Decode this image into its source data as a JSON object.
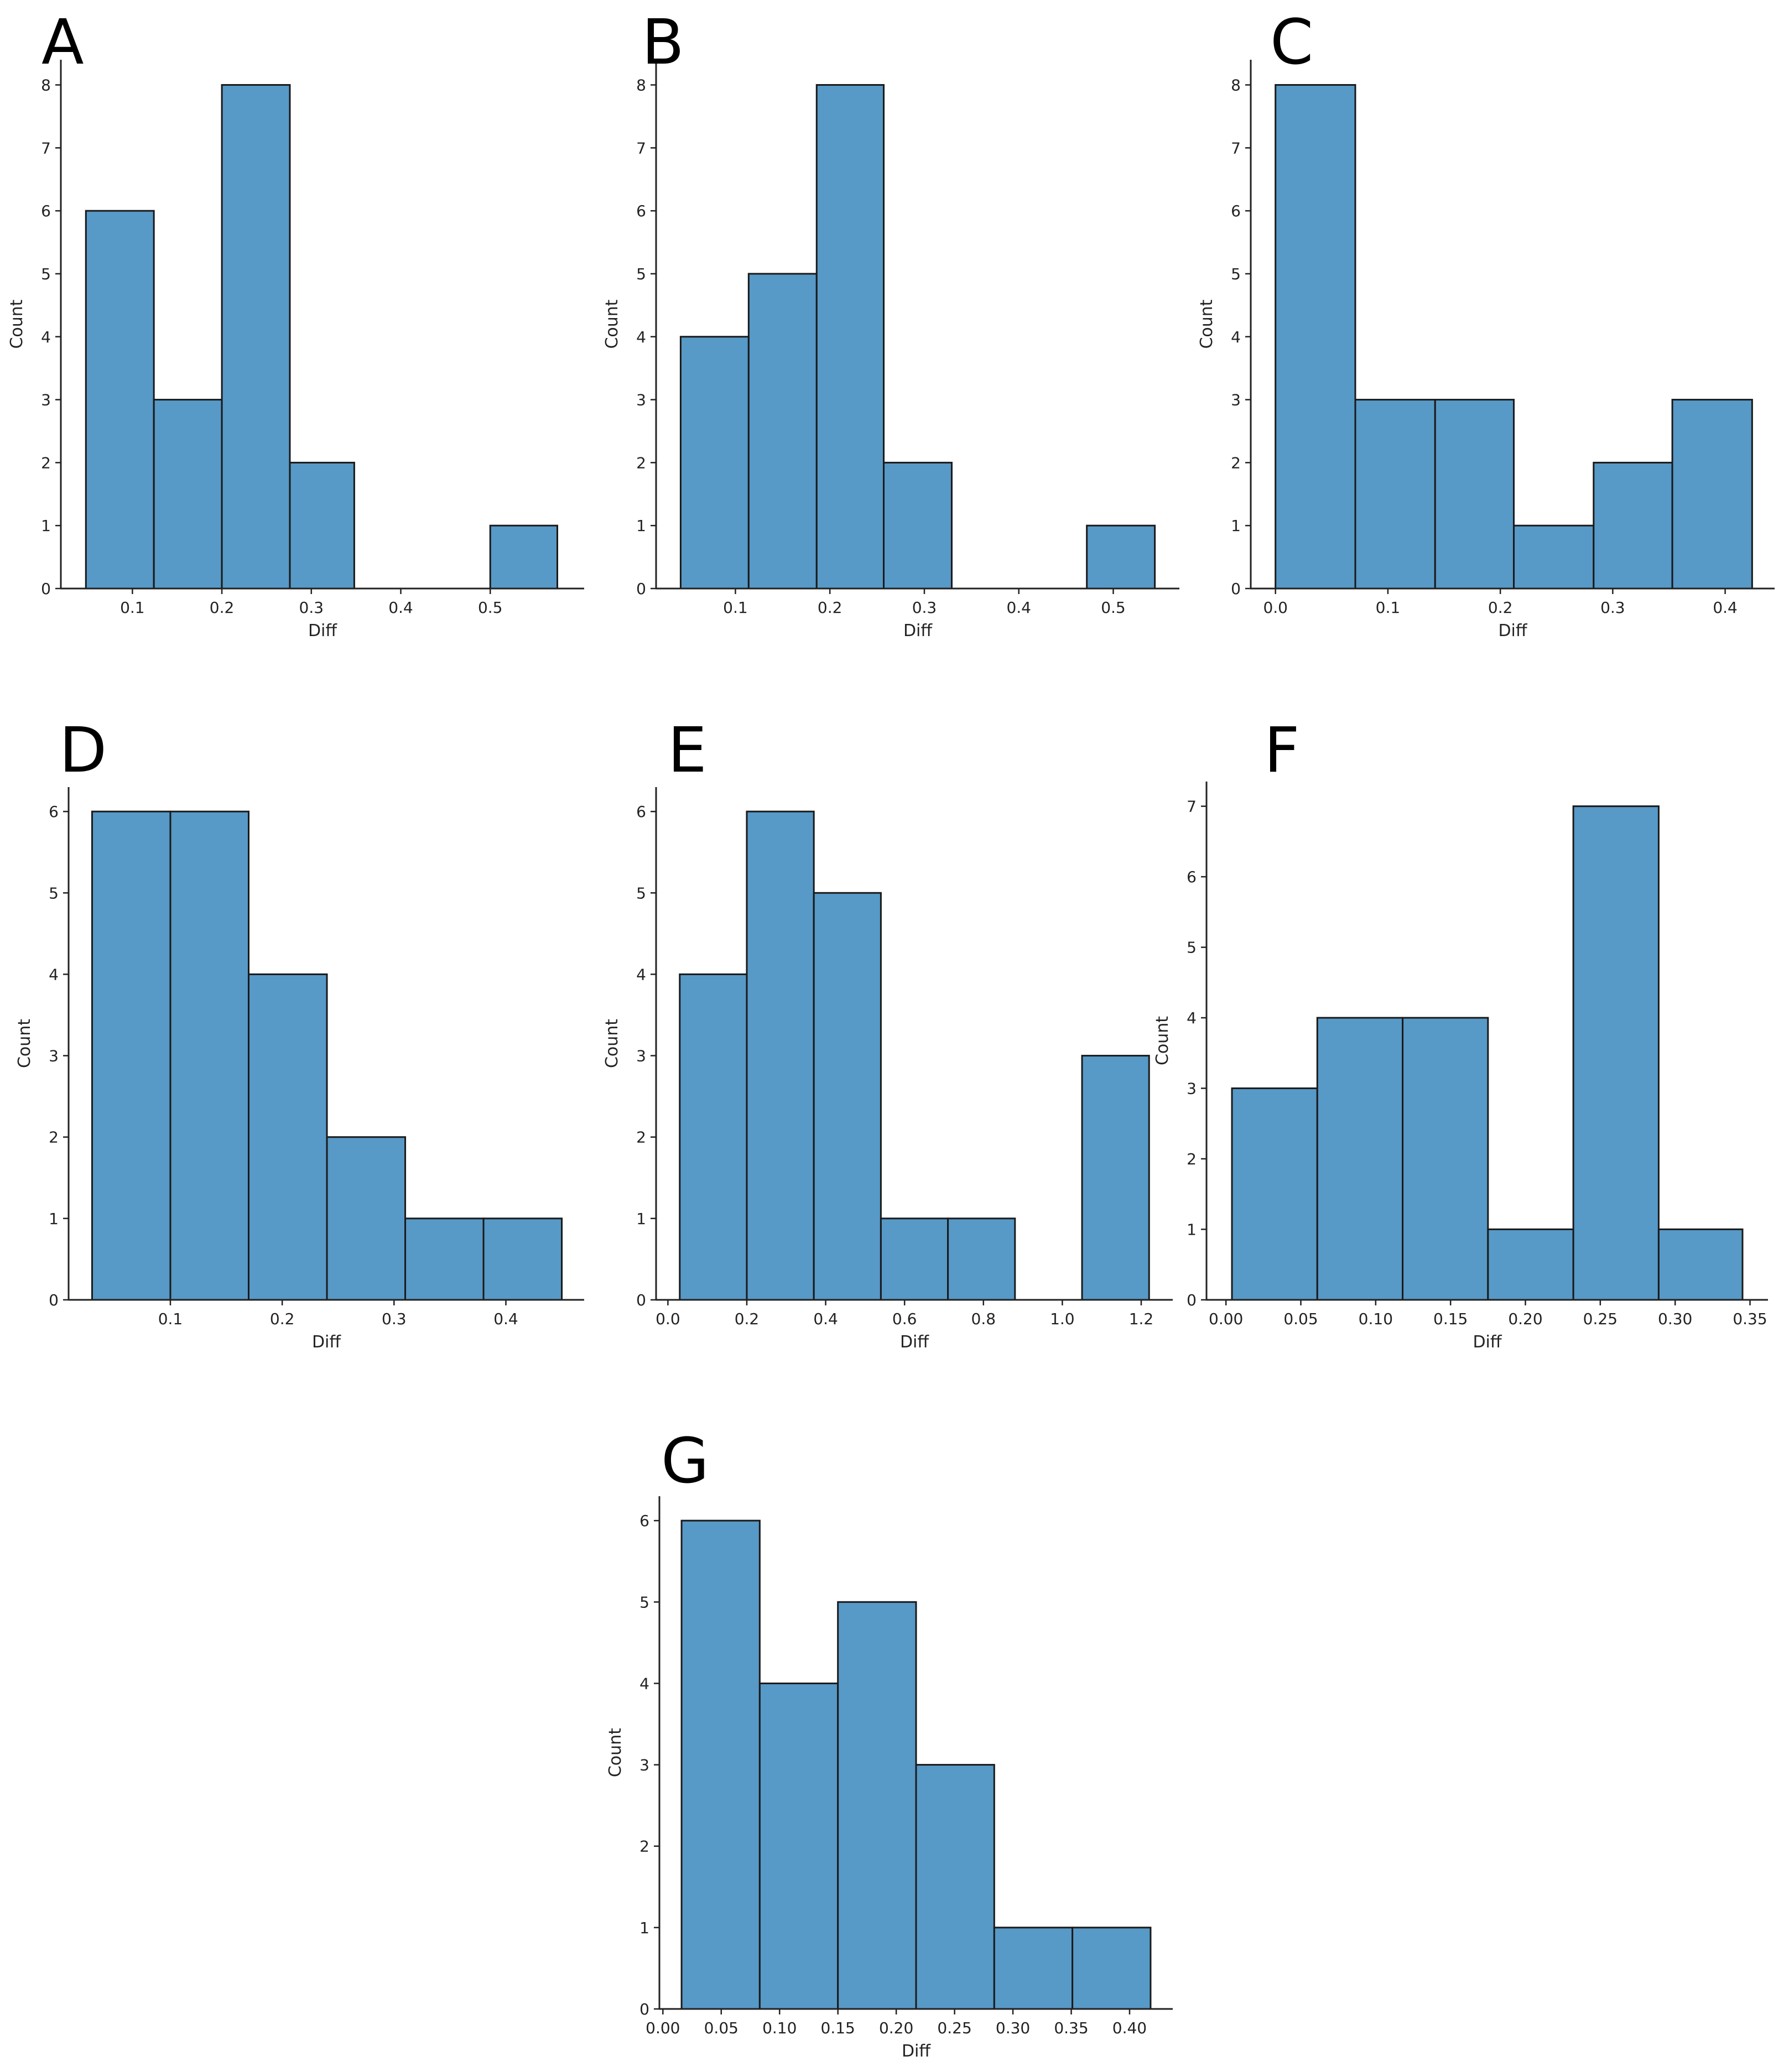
{
  "figure": {
    "background": "#ffffff"
  },
  "style": {
    "bar_fill": "#5799C7",
    "bar_edge": "#1a1a1a",
    "axis_color": "#222222",
    "text_color": "#222222"
  },
  "chart_data": [
    {
      "panel_label": "A",
      "type": "histogram",
      "xlabel": "Diff",
      "ylabel": "Count",
      "bin_edges": [
        0.048,
        0.124,
        0.2,
        0.276,
        0.348,
        0.424,
        0.5,
        0.575
      ],
      "counts": [
        6,
        3,
        8,
        2,
        0,
        0,
        1
      ],
      "xlim": [
        0.02,
        0.605
      ],
      "ylim": [
        0,
        8.4
      ],
      "xticks": [
        0.1,
        0.2,
        0.3,
        0.4,
        0.5
      ],
      "xtick_labels": [
        "0.1",
        "0.2",
        "0.3",
        "0.4",
        "0.5"
      ],
      "yticks": [
        0,
        1,
        2,
        3,
        4,
        5,
        6,
        7,
        8
      ],
      "ytick_labels": [
        "0",
        "1",
        "2",
        "3",
        "4",
        "5",
        "6",
        "7",
        "8"
      ]
    },
    {
      "panel_label": "B",
      "type": "histogram",
      "xlabel": "Diff",
      "ylabel": "Count",
      "bin_edges": [
        0.042,
        0.114,
        0.186,
        0.257,
        0.329,
        0.401,
        0.472,
        0.544
      ],
      "counts": [
        4,
        5,
        8,
        2,
        0,
        0,
        1
      ],
      "xlim": [
        0.016,
        0.57
      ],
      "ylim": [
        0,
        8.4
      ],
      "xticks": [
        0.1,
        0.2,
        0.3,
        0.4,
        0.5
      ],
      "xtick_labels": [
        "0.1",
        "0.2",
        "0.3",
        "0.4",
        "0.5"
      ],
      "yticks": [
        0,
        1,
        2,
        3,
        4,
        5,
        6,
        7,
        8
      ],
      "ytick_labels": [
        "0",
        "1",
        "2",
        "3",
        "4",
        "5",
        "6",
        "7",
        "8"
      ]
    },
    {
      "panel_label": "C",
      "type": "histogram",
      "xlabel": "Diff",
      "ylabel": "Count",
      "bin_edges": [
        0.0,
        0.071,
        0.142,
        0.212,
        0.283,
        0.353,
        0.424
      ],
      "counts": [
        8,
        3,
        3,
        1,
        2,
        3
      ],
      "xlim": [
        -0.022,
        0.444
      ],
      "ylim": [
        0,
        8.4
      ],
      "xticks": [
        0.0,
        0.1,
        0.2,
        0.3,
        0.4
      ],
      "xtick_labels": [
        "0.0",
        "0.1",
        "0.2",
        "0.3",
        "0.4"
      ],
      "yticks": [
        0,
        1,
        2,
        3,
        4,
        5,
        6,
        7,
        8
      ],
      "ytick_labels": [
        "0",
        "1",
        "2",
        "3",
        "4",
        "5",
        "6",
        "7",
        "8"
      ]
    },
    {
      "panel_label": "D",
      "type": "histogram",
      "xlabel": "Diff",
      "ylabel": "Count",
      "bin_edges": [
        0.03,
        0.1,
        0.17,
        0.24,
        0.31,
        0.38,
        0.45
      ],
      "counts": [
        6,
        6,
        4,
        2,
        1,
        1
      ],
      "xlim": [
        0.009,
        0.47
      ],
      "ylim": [
        0,
        6.3
      ],
      "xticks": [
        0.1,
        0.2,
        0.3,
        0.4
      ],
      "xtick_labels": [
        "0.1",
        "0.2",
        "0.3",
        "0.4"
      ],
      "yticks": [
        0,
        1,
        2,
        3,
        4,
        5,
        6
      ],
      "ytick_labels": [
        "0",
        "1",
        "2",
        "3",
        "4",
        "5",
        "6"
      ]
    },
    {
      "panel_label": "E",
      "type": "histogram",
      "xlabel": "Diff",
      "ylabel": "Count",
      "bin_edges": [
        0.03,
        0.2,
        0.37,
        0.54,
        0.71,
        0.88,
        1.05,
        1.22
      ],
      "counts": [
        4,
        6,
        5,
        1,
        1,
        0,
        3
      ],
      "xlim": [
        -0.03,
        1.28
      ],
      "ylim": [
        0,
        6.3
      ],
      "xticks": [
        0.0,
        0.2,
        0.4,
        0.6,
        0.8,
        1.0,
        1.2
      ],
      "xtick_labels": [
        "0.0",
        "0.2",
        "0.4",
        "0.6",
        "0.8",
        "1.0",
        "1.2"
      ],
      "yticks": [
        0,
        1,
        2,
        3,
        4,
        5,
        6
      ],
      "ytick_labels": [
        "0",
        "1",
        "2",
        "3",
        "4",
        "5",
        "6"
      ]
    },
    {
      "panel_label": "F",
      "type": "histogram",
      "xlabel": "Diff",
      "ylabel": "Count",
      "bin_edges": [
        0.004,
        0.061,
        0.118,
        0.175,
        0.232,
        0.289,
        0.345
      ],
      "counts": [
        3,
        4,
        4,
        1,
        7,
        1
      ],
      "xlim": [
        -0.013,
        0.362
      ],
      "ylim": [
        0,
        7.35
      ],
      "xticks": [
        0.0,
        0.05,
        0.1,
        0.15,
        0.2,
        0.25,
        0.3,
        0.35
      ],
      "xtick_labels": [
        "0.00",
        "0.05",
        "0.10",
        "0.15",
        "0.20",
        "0.25",
        "0.30",
        "0.35"
      ],
      "yticks": [
        0,
        1,
        2,
        3,
        4,
        5,
        6,
        7
      ],
      "ytick_labels": [
        "0",
        "1",
        "2",
        "3",
        "4",
        "5",
        "6",
        "7"
      ]
    },
    {
      "panel_label": "G",
      "type": "histogram",
      "xlabel": "Diff",
      "ylabel": "Count",
      "bin_edges": [
        0.016,
        0.083,
        0.15,
        0.217,
        0.284,
        0.351,
        0.418
      ],
      "counts": [
        6,
        4,
        5,
        3,
        1,
        1
      ],
      "xlim": [
        -0.003,
        0.437
      ],
      "ylim": [
        0,
        6.3
      ],
      "xticks": [
        0.0,
        0.05,
        0.1,
        0.15,
        0.2,
        0.25,
        0.3,
        0.35,
        0.4
      ],
      "xtick_labels": [
        "0.00",
        "0.05",
        "0.10",
        "0.15",
        "0.20",
        "0.25",
        "0.30",
        "0.35",
        "0.40"
      ],
      "yticks": [
        0,
        1,
        2,
        3,
        4,
        5,
        6
      ],
      "ytick_labels": [
        "0",
        "1",
        "2",
        "3",
        "4",
        "5",
        "6"
      ]
    }
  ]
}
